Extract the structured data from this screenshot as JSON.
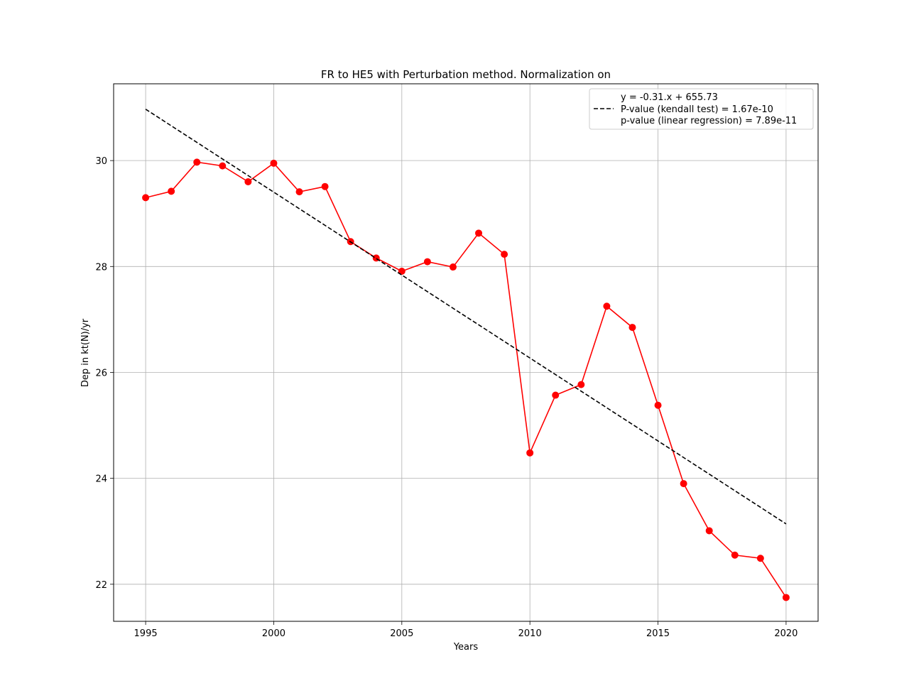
{
  "chart_data": {
    "type": "line",
    "title": "FR to HE5 with Perturbation method. Normalization on",
    "xlabel": "Years",
    "ylabel": "Dep in kt(N)/yr",
    "xlim": [
      1993.75,
      2021.25
    ],
    "ylim": [
      21.3,
      31.45
    ],
    "xticks": [
      1995,
      2000,
      2005,
      2010,
      2015,
      2020
    ],
    "yticks": [
      22,
      24,
      26,
      28,
      30
    ],
    "grid": true,
    "legend_position": "top-right",
    "series": [
      {
        "color": "#ff0000",
        "marker": "circle",
        "x": [
          1995,
          1996,
          1997,
          1998,
          1999,
          2000,
          2001,
          2002,
          2003,
          2004,
          2005,
          2006,
          2007,
          2008,
          2009,
          2010,
          2011,
          2012,
          2013,
          2014,
          2015,
          2016,
          2017,
          2018,
          2019,
          2020
        ],
        "y": [
          29.3,
          29.42,
          29.97,
          29.9,
          29.6,
          29.95,
          29.41,
          29.51,
          28.47,
          28.16,
          27.91,
          28.09,
          27.99,
          28.63,
          28.23,
          24.48,
          25.57,
          25.77,
          27.25,
          26.85,
          25.38,
          23.9,
          23.01,
          22.55,
          22.49,
          21.75
        ]
      },
      {
        "name": "P-value (kendall test) = 1.67e-10",
        "color": "#000000",
        "style": "dashed",
        "x": [
          1995,
          2020
        ],
        "y": [
          30.97,
          23.14
        ]
      }
    ],
    "legend": [
      "y = -0.31.x + 655.73",
      "P-value (kendall test) = 1.67e-10",
      "p-value (linear regression) = 7.89e-11"
    ]
  }
}
